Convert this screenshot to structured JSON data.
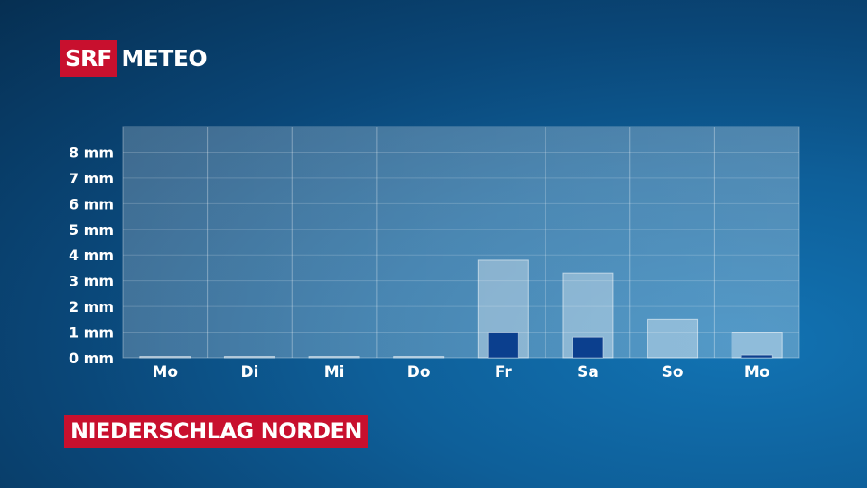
{
  "brand": {
    "srf": "SRF",
    "meteo": "METEO"
  },
  "title": "NIEDERSCHLAG NORDEN",
  "colors": {
    "brand_red": "#c8102e",
    "bar_light": "rgba(255,255,255,0.35)",
    "bar_dark": "#0b3f8e"
  },
  "chart_data": {
    "type": "bar",
    "title": "NIEDERSCHLAG NORDEN",
    "unit": "mm",
    "categories": [
      "Mo",
      "Di",
      "Mi",
      "Do",
      "Fr",
      "Sa",
      "So",
      "Mo"
    ],
    "y_ticks": [
      0,
      1,
      2,
      3,
      4,
      5,
      6,
      7,
      8
    ],
    "y_tick_labels": [
      "0 mm",
      "1 mm",
      "2 mm",
      "3 mm",
      "4 mm",
      "5 mm",
      "6 mm",
      "7 mm",
      "8 mm"
    ],
    "ylim": [
      0,
      9
    ],
    "series": [
      {
        "values": [
          0.05,
          0.05,
          0.05,
          0.05,
          3.8,
          3.3,
          1.5,
          1.0
        ]
      },
      {
        "values": [
          0,
          0,
          0,
          0,
          1.0,
          0.8,
          0,
          0.1
        ]
      }
    ],
    "grid": true,
    "legend": "none"
  }
}
